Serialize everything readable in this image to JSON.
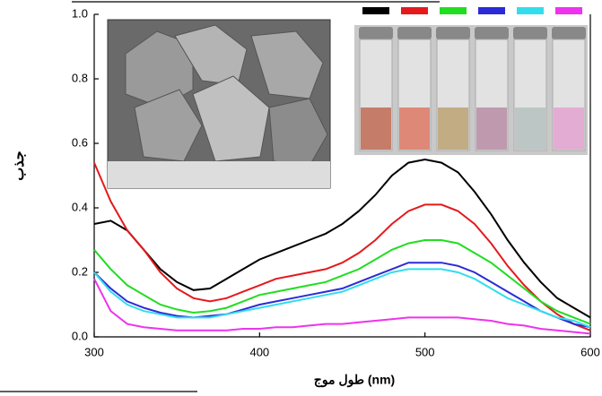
{
  "chart_data": {
    "type": "line",
    "x_label": "طول موج (nm)",
    "y_label": "جذب",
    "x": [
      300,
      310,
      320,
      330,
      340,
      350,
      360,
      370,
      380,
      390,
      400,
      410,
      420,
      430,
      440,
      450,
      460,
      470,
      480,
      490,
      500,
      510,
      520,
      530,
      540,
      550,
      560,
      570,
      580,
      590,
      600
    ],
    "series": [
      {
        "color": "#000000",
        "values": [
          0.35,
          0.36,
          0.33,
          0.27,
          0.21,
          0.17,
          0.145,
          0.15,
          0.18,
          0.21,
          0.24,
          0.26,
          0.28,
          0.3,
          0.32,
          0.35,
          0.39,
          0.44,
          0.5,
          0.54,
          0.55,
          0.54,
          0.51,
          0.45,
          0.38,
          0.3,
          0.23,
          0.17,
          0.12,
          0.09,
          0.06
        ]
      },
      {
        "color": "#e41a1c",
        "values": [
          0.54,
          0.42,
          0.33,
          0.27,
          0.2,
          0.15,
          0.12,
          0.11,
          0.12,
          0.14,
          0.16,
          0.18,
          0.19,
          0.2,
          0.21,
          0.23,
          0.26,
          0.3,
          0.35,
          0.39,
          0.41,
          0.41,
          0.39,
          0.35,
          0.29,
          0.22,
          0.16,
          0.11,
          0.07,
          0.04,
          0.02
        ]
      },
      {
        "color": "#22dd22",
        "values": [
          0.27,
          0.21,
          0.16,
          0.13,
          0.1,
          0.085,
          0.075,
          0.08,
          0.09,
          0.11,
          0.13,
          0.14,
          0.15,
          0.16,
          0.17,
          0.19,
          0.21,
          0.24,
          0.27,
          0.29,
          0.3,
          0.3,
          0.29,
          0.26,
          0.23,
          0.19,
          0.15,
          0.11,
          0.08,
          0.06,
          0.04
        ]
      },
      {
        "color": "#2b2bd6",
        "values": [
          0.2,
          0.15,
          0.11,
          0.09,
          0.075,
          0.065,
          0.06,
          0.065,
          0.07,
          0.085,
          0.1,
          0.11,
          0.12,
          0.13,
          0.14,
          0.15,
          0.17,
          0.19,
          0.21,
          0.23,
          0.23,
          0.23,
          0.22,
          0.2,
          0.17,
          0.14,
          0.11,
          0.08,
          0.06,
          0.04,
          0.03
        ]
      },
      {
        "color": "#33ddee",
        "values": [
          0.2,
          0.14,
          0.1,
          0.08,
          0.07,
          0.06,
          0.06,
          0.06,
          0.07,
          0.08,
          0.09,
          0.1,
          0.11,
          0.12,
          0.13,
          0.14,
          0.16,
          0.18,
          0.2,
          0.21,
          0.21,
          0.21,
          0.2,
          0.18,
          0.15,
          0.12,
          0.1,
          0.08,
          0.06,
          0.05,
          0.03
        ]
      },
      {
        "color": "#ee33ee",
        "values": [
          0.18,
          0.08,
          0.04,
          0.03,
          0.025,
          0.02,
          0.02,
          0.02,
          0.02,
          0.025,
          0.025,
          0.03,
          0.03,
          0.035,
          0.04,
          0.04,
          0.045,
          0.05,
          0.055,
          0.06,
          0.06,
          0.06,
          0.06,
          0.055,
          0.05,
          0.04,
          0.035,
          0.025,
          0.02,
          0.015,
          0.01
        ]
      }
    ],
    "xlim": [
      300,
      600
    ],
    "ylim": [
      0,
      1
    ],
    "xticks": [
      300,
      400,
      500,
      600
    ],
    "yticks": [
      {
        "value": 0,
        "label": "0.0"
      },
      {
        "value": 0.2,
        "label": "0.2"
      },
      {
        "value": 0.4,
        "label": "0.4"
      },
      {
        "value": 0.6,
        "label": "0.6"
      },
      {
        "value": 0.8,
        "label": "0.8"
      },
      {
        "value": 1,
        "label": "1.0"
      }
    ]
  }
}
